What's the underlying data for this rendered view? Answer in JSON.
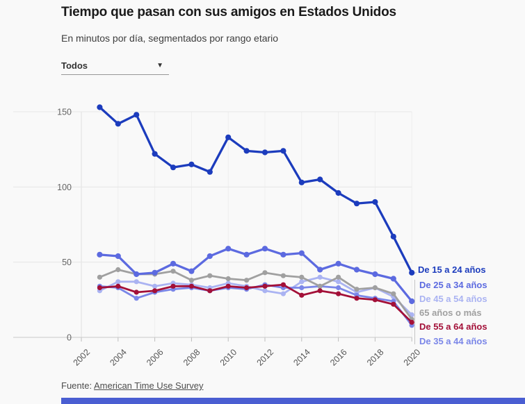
{
  "chart_data": {
    "type": "line",
    "title": "Tiempo que pasan con sus amigos en Estados Unidos",
    "subtitle": "En minutos por día, segmentados por rango etario",
    "x": [
      2003,
      2004,
      2005,
      2006,
      2007,
      2008,
      2009,
      2010,
      2011,
      2012,
      2013,
      2014,
      2015,
      2016,
      2017,
      2018,
      2019,
      2020
    ],
    "x_ticks": [
      2002,
      2004,
      2006,
      2008,
      2010,
      2012,
      2014,
      2016,
      2018,
      2020
    ],
    "y_ticks": [
      0,
      50,
      100,
      150
    ],
    "ylim": [
      0,
      160
    ],
    "grid": true,
    "legend_position": "right",
    "series": [
      {
        "name": "De 15 a 24 años",
        "color": "#1c3cbd",
        "values": [
          153,
          142,
          148,
          122,
          113,
          115,
          110,
          133,
          124,
          123,
          124,
          103,
          105,
          96,
          89,
          90,
          67,
          43
        ]
      },
      {
        "name": "De 25 a 34 años",
        "color": "#5c6ae0",
        "values": [
          55,
          54,
          42,
          43,
          49,
          44,
          54,
          59,
          55,
          59,
          55,
          56,
          45,
          49,
          45,
          42,
          39,
          24
        ]
      },
      {
        "name": "De 45 a 54 años",
        "color": "#aab3f2",
        "values": [
          31,
          37,
          37,
          34,
          36,
          35,
          33,
          36,
          34,
          31,
          29,
          37,
          40,
          37,
          30,
          33,
          27,
          15
        ]
      },
      {
        "name": "65 años o más",
        "color": "#a0a0a0",
        "values": [
          40,
          45,
          42,
          42,
          44,
          38,
          41,
          39,
          38,
          43,
          41,
          40,
          34,
          40,
          32,
          33,
          29,
          12
        ]
      },
      {
        "name": "De 55 a 64 años",
        "color": "#a31038",
        "values": [
          33,
          34,
          30,
          31,
          34,
          34,
          31,
          34,
          33,
          34,
          35,
          28,
          31,
          29,
          26,
          25,
          22,
          10
        ]
      },
      {
        "name": "De 35 a 44 años",
        "color": "#7a86e8",
        "values": [
          34,
          33,
          26,
          30,
          32,
          33,
          31,
          33,
          32,
          35,
          33,
          33,
          34,
          33,
          28,
          26,
          24,
          8
        ]
      }
    ]
  },
  "filter": {
    "selected": "Todos",
    "caret_icon": "▼"
  },
  "source": {
    "prefix": "Fuente:",
    "link_text": "American Time Use Survey"
  },
  "footer": {
    "bar_color": "#4a5ed2"
  }
}
